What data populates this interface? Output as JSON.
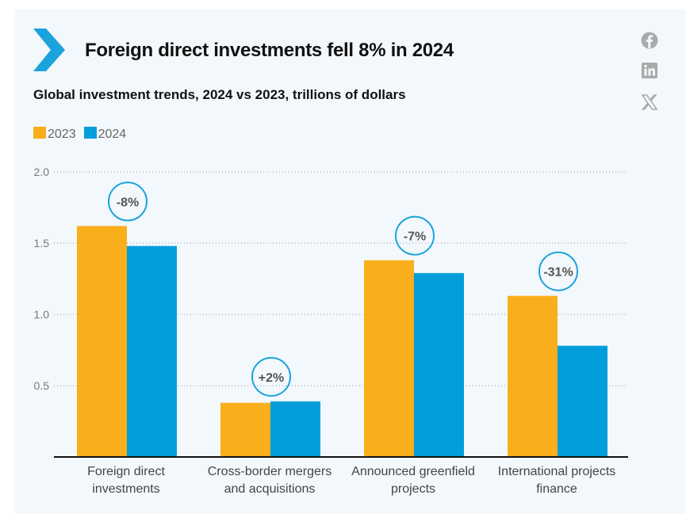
{
  "header": {
    "title": "Foreign direct investments fell 8% in 2024",
    "subtitle": "Global investment trends, 2024 vs 2023, trillions of dollars"
  },
  "social": {
    "icons": [
      "facebook-icon",
      "linkedin-icon",
      "x-icon"
    ]
  },
  "colors": {
    "2023": "#f9ae1b",
    "2024": "#029edb",
    "accent": "#1aa3dc",
    "bg": "#f3f8fc"
  },
  "chart_data": {
    "type": "bar",
    "title": "Foreign direct investments fell 8% in 2024",
    "subtitle": "Global investment trends, 2024 vs 2023, trillions of dollars",
    "categories": [
      [
        "Foreign direct",
        "investments"
      ],
      [
        "Cross-border mergers",
        "and acquisitions"
      ],
      [
        "Announced greenfield",
        "projects"
      ],
      [
        "International projects",
        "finance"
      ]
    ],
    "series": [
      {
        "name": "2023",
        "values": [
          1.62,
          0.38,
          1.38,
          1.13
        ]
      },
      {
        "name": "2024",
        "values": [
          1.48,
          0.39,
          1.29,
          0.78
        ]
      }
    ],
    "annotations": [
      "-8%",
      "+2%",
      "-7%",
      "-31%"
    ],
    "yticks": [
      "0.5",
      "1.0",
      "1.5",
      "2.0"
    ],
    "ylim": [
      0,
      2.0
    ],
    "grid": true,
    "legend": "top-left",
    "xlabel": "",
    "ylabel": ""
  }
}
